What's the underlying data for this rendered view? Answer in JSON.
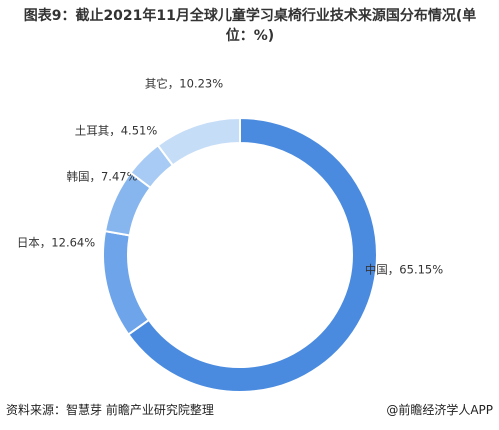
{
  "chart_data": {
    "type": "donut",
    "title": "图表9：截止2021年11月全球儿童学习桌椅行业技术来源国分布情况(单位：%)",
    "values": [
      65.15,
      12.64,
      7.47,
      4.51,
      10.23
    ],
    "value_labels": [
      "中国，65.15%",
      "日本，12.64%",
      "韩国，7.47%",
      "土耳其，4.51%",
      "其它，10.23%"
    ],
    "colors": [
      "#4a8be0",
      "#6da4ea",
      "#87b6ee",
      "#a7cbf4",
      "#c6ddf8"
    ]
  },
  "footer": {
    "source": "资料来源：智慧芽 前瞻产业研究院整理",
    "brand": "@前瞻经济学人APP"
  }
}
